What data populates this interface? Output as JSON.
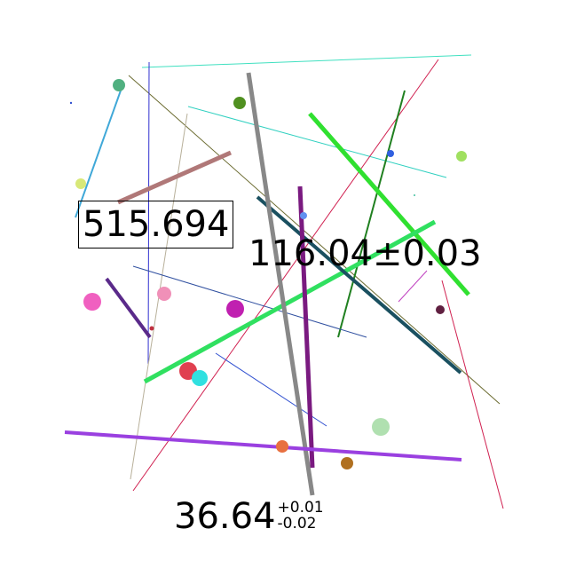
{
  "labels": {
    "boxed_value": "515.694",
    "value_with_pm": "116.04±0.03",
    "asym_main": "36.64",
    "asym_plus": "+0.01",
    "asym_minus": "-0.02"
  },
  "colors": {
    "background": "#ffffff",
    "text": "#000000"
  }
}
